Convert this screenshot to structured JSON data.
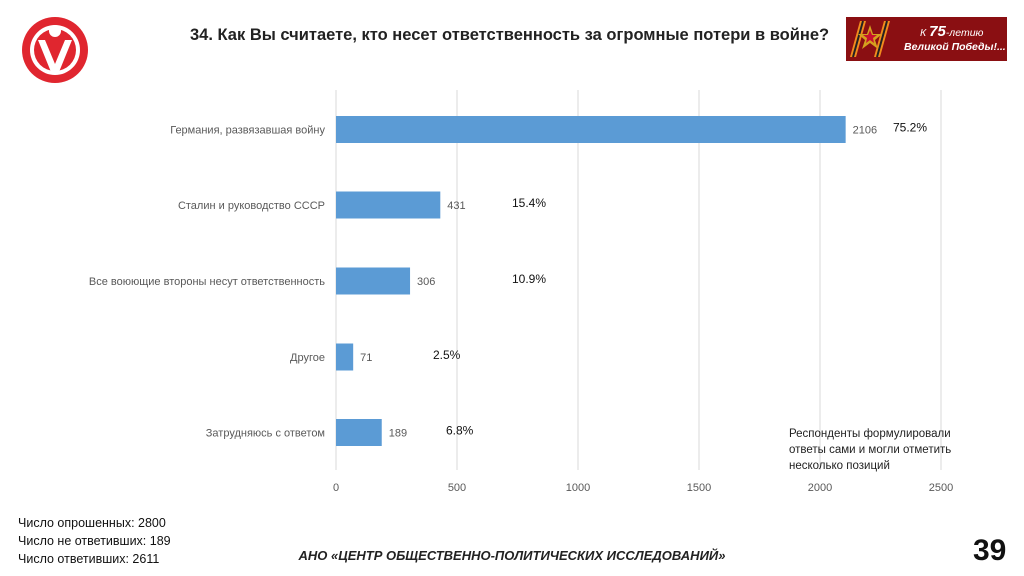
{
  "header": {
    "title": "34. Как Вы считаете, кто несет ответственность за огромные потери в войне?",
    "banner_line1_prefix": "К",
    "banner_line1_number": "75",
    "banner_line1_suffix": "-летию",
    "banner_line2": "Великой Победы!..."
  },
  "colors": {
    "bar": "#5b9bd5",
    "logo": "#e0262f",
    "banner": "#8a0f12"
  },
  "chart_data": {
    "type": "bar",
    "orientation": "horizontal",
    "categories": [
      "Германия, развязавшая войну",
      "Сталин и руководство СССР",
      "Все воюющие вторoны несут ответственность",
      "Другое",
      "Затрудняюсь с ответом"
    ],
    "values": [
      2106,
      431,
      306,
      71,
      189
    ],
    "value_labels": [
      "2106",
      "431",
      "306",
      "71",
      "189"
    ],
    "percent_labels": [
      "75.2%",
      "15.4%",
      "10.9%",
      "2.5%",
      "6.8%"
    ],
    "xlim": [
      0,
      2500
    ],
    "xticks": [
      0,
      500,
      1000,
      1500,
      2000,
      2500
    ],
    "xtick_labels": [
      "0",
      "500",
      "1000",
      "1500",
      "2000",
      "2500"
    ],
    "grid": true,
    "title": "",
    "xlabel": "",
    "ylabel": ""
  },
  "note": {
    "line1": "Респонденты формулировали",
    "line2": "ответы сами и могли отметить",
    "line3": "несколько позиций"
  },
  "stats": {
    "surveyed": "Число опрошенных: 2800",
    "not_answered": "Число не ответивших: 189",
    "answered": "Число ответивших: 2611"
  },
  "footer": {
    "org": "АНО «ЦЕНТР ОБЩЕСТВЕННО-ПОЛИТИЧЕСКИХ ИССЛЕДОВАНИЙ»"
  },
  "page_number": "39",
  "icons": {
    "logo": "person-logo-icon",
    "ribbon": "st-george-ribbon-icon"
  }
}
